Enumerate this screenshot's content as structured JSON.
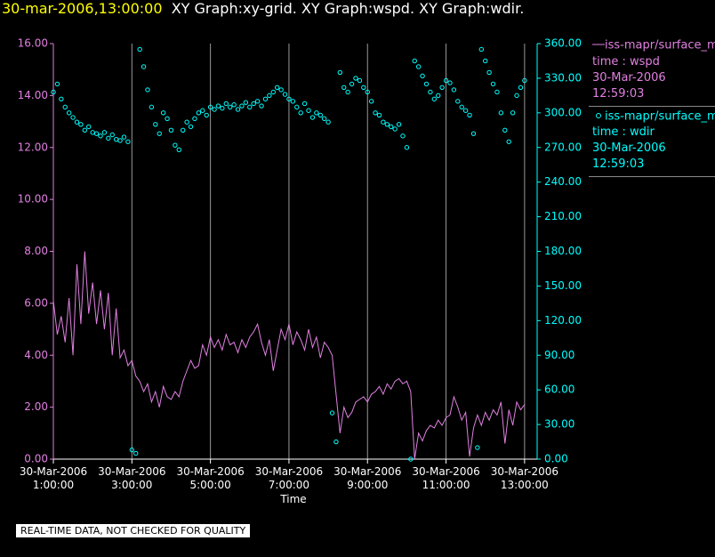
{
  "chart_data": {
    "type": "line",
    "timestamp": "30-mar-2006,13:00:00",
    "title": "XY Graph:xy-grid.  XY Graph:wspd.  XY Graph:wdir.",
    "x_label": "Time",
    "footer": "REAL-TIME DATA, NOT CHECKED FOR QUALITY",
    "xlim": [
      1,
      13.32
    ],
    "xticks": [
      {
        "value": 1,
        "label": "30-Mar-2006 1:00:00"
      },
      {
        "value": 3,
        "label": "30-Mar-2006 3:00:00"
      },
      {
        "value": 5,
        "label": "30-Mar-2006 5:00:00"
      },
      {
        "value": 7,
        "label": "30-Mar-2006 7:00:00"
      },
      {
        "value": 9,
        "label": "30-Mar-2006 9:00:00"
      },
      {
        "value": 11,
        "label": "30-Mar-2006 11:00:00"
      },
      {
        "value": 13,
        "label": "30-Mar-2006 13:00:00"
      }
    ],
    "ylim": [
      0,
      16
    ],
    "yticks": [
      {
        "value": 0,
        "label": "0.00"
      },
      {
        "value": 2,
        "label": "2.00"
      },
      {
        "value": 4,
        "label": "4.00"
      },
      {
        "value": 6,
        "label": "6.00"
      },
      {
        "value": 8,
        "label": "8.00"
      },
      {
        "value": 10,
        "label": "10.00"
      },
      {
        "value": 12,
        "label": "12.00"
      },
      {
        "value": 14,
        "label": "14.00"
      },
      {
        "value": 16,
        "label": "16.00"
      }
    ],
    "y2lim": [
      0,
      360
    ],
    "y2ticks": [
      {
        "value": 0,
        "label": "0.00"
      },
      {
        "value": 30,
        "label": "30.00"
      },
      {
        "value": 60,
        "label": "60.00"
      },
      {
        "value": 90,
        "label": "90.00"
      },
      {
        "value": 120,
        "label": "120.00"
      },
      {
        "value": 150,
        "label": "150.00"
      },
      {
        "value": 180,
        "label": "180.00"
      },
      {
        "value": 210,
        "label": "210.00"
      },
      {
        "value": 240,
        "label": "240.00"
      },
      {
        "value": 270,
        "label": "270.00"
      },
      {
        "value": 300,
        "label": "300.00"
      },
      {
        "value": 330,
        "label": "330.00"
      },
      {
        "value": 360,
        "label": "360.00"
      }
    ],
    "grid": true,
    "series": [
      {
        "name": "iss-mapr/surface_m",
        "color": "#e080e0",
        "type": "line",
        "legend_lines": [
          "time : wspd",
          "30-Mar-2006",
          "12:59:03"
        ],
        "x": [
          1.0,
          1.1,
          1.2,
          1.3,
          1.4,
          1.5,
          1.6,
          1.7,
          1.8,
          1.9,
          2.0,
          2.1,
          2.2,
          2.3,
          2.4,
          2.5,
          2.6,
          2.7,
          2.8,
          2.9,
          3.0,
          3.1,
          3.2,
          3.3,
          3.4,
          3.5,
          3.6,
          3.7,
          3.8,
          3.9,
          4.0,
          4.1,
          4.2,
          4.3,
          4.4,
          4.5,
          4.6,
          4.7,
          4.8,
          4.9,
          5.0,
          5.1,
          5.2,
          5.3,
          5.4,
          5.5,
          5.6,
          5.7,
          5.8,
          5.9,
          6.0,
          6.1,
          6.2,
          6.3,
          6.4,
          6.5,
          6.6,
          6.7,
          6.8,
          6.9,
          7.0,
          7.1,
          7.2,
          7.3,
          7.4,
          7.5,
          7.6,
          7.7,
          7.8,
          7.9,
          8.0,
          8.1,
          8.2,
          8.3,
          8.4,
          8.5,
          8.6,
          8.7,
          8.8,
          8.9,
          9.0,
          9.1,
          9.2,
          9.3,
          9.4,
          9.5,
          9.6,
          9.7,
          9.8,
          9.9,
          10.0,
          10.1,
          10.2,
          10.3,
          10.4,
          10.5,
          10.6,
          10.7,
          10.8,
          10.9,
          11.0,
          11.1,
          11.2,
          11.3,
          11.4,
          11.5,
          11.6,
          11.7,
          11.8,
          11.9,
          12.0,
          12.1,
          12.2,
          12.3,
          12.4,
          12.5,
          12.6,
          12.7,
          12.8,
          12.9,
          13.0
        ],
        "values": [
          6.1,
          4.8,
          5.5,
          4.5,
          6.2,
          4.0,
          7.5,
          5.2,
          8.0,
          5.6,
          6.8,
          5.2,
          6.5,
          5.0,
          6.4,
          4.0,
          5.8,
          3.9,
          4.2,
          3.6,
          3.8,
          3.2,
          3.0,
          2.6,
          2.9,
          2.2,
          2.6,
          2.0,
          2.8,
          2.4,
          2.3,
          2.6,
          2.4,
          3.0,
          3.4,
          3.8,
          3.5,
          3.6,
          4.4,
          4.0,
          4.7,
          4.3,
          4.6,
          4.2,
          4.8,
          4.4,
          4.5,
          4.1,
          4.6,
          4.3,
          4.7,
          4.9,
          5.2,
          4.5,
          4.0,
          4.6,
          3.4,
          4.2,
          5.0,
          4.6,
          5.2,
          4.4,
          4.9,
          4.6,
          4.2,
          5.0,
          4.3,
          4.7,
          3.9,
          4.5,
          4.3,
          4.0,
          2.5,
          1.0,
          2.0,
          1.6,
          1.8,
          2.2,
          2.3,
          2.4,
          2.2,
          2.5,
          2.6,
          2.8,
          2.5,
          2.9,
          2.7,
          3.0,
          3.1,
          2.9,
          3.0,
          2.6,
          0.0,
          1.0,
          0.7,
          1.1,
          1.3,
          1.2,
          1.5,
          1.3,
          1.6,
          1.7,
          2.4,
          2.0,
          1.5,
          1.8,
          0.1,
          1.2,
          1.7,
          1.3,
          1.8,
          1.5,
          1.9,
          1.7,
          2.2,
          0.6,
          1.9,
          1.3,
          2.2,
          1.9,
          2.1
        ]
      },
      {
        "name": "iss-mapr/surface_m",
        "color": "#00ffff",
        "type": "scatter",
        "axis": "y2",
        "legend_lines": [
          "time : wdir",
          "30-Mar-2006",
          "12:59:03"
        ],
        "x": [
          1.0,
          1.1,
          1.2,
          1.3,
          1.4,
          1.5,
          1.6,
          1.7,
          1.8,
          1.9,
          2.0,
          2.1,
          2.2,
          2.3,
          2.4,
          2.5,
          2.6,
          2.7,
          2.8,
          2.9,
          3.0,
          3.1,
          3.2,
          3.3,
          3.4,
          3.5,
          3.6,
          3.7,
          3.8,
          3.9,
          4.0,
          4.1,
          4.2,
          4.3,
          4.4,
          4.5,
          4.6,
          4.7,
          4.8,
          4.9,
          5.0,
          5.1,
          5.2,
          5.3,
          5.4,
          5.5,
          5.6,
          5.7,
          5.8,
          5.9,
          6.0,
          6.1,
          6.2,
          6.3,
          6.4,
          6.5,
          6.6,
          6.7,
          6.8,
          6.9,
          7.0,
          7.1,
          7.2,
          7.3,
          7.4,
          7.5,
          7.6,
          7.7,
          7.8,
          7.9,
          8.0,
          8.1,
          8.2,
          8.3,
          8.4,
          8.5,
          8.6,
          8.7,
          8.8,
          8.9,
          9.0,
          9.1,
          9.2,
          9.3,
          9.4,
          9.5,
          9.6,
          9.7,
          9.8,
          9.9,
          10.0,
          10.1,
          10.2,
          10.3,
          10.4,
          10.5,
          10.6,
          10.7,
          10.8,
          10.9,
          11.0,
          11.1,
          11.2,
          11.3,
          11.4,
          11.5,
          11.6,
          11.7,
          11.8,
          11.9,
          12.0,
          12.1,
          12.2,
          12.3,
          12.4,
          12.5,
          12.6,
          12.7,
          12.8,
          12.9,
          13.0
        ],
        "values": [
          318,
          325,
          312,
          305,
          300,
          296,
          292,
          290,
          285,
          288,
          283,
          282,
          280,
          283,
          278,
          281,
          277,
          276,
          279,
          275,
          8,
          5,
          355,
          340,
          320,
          305,
          290,
          282,
          300,
          295,
          285,
          272,
          268,
          285,
          292,
          288,
          295,
          300,
          302,
          298,
          305,
          303,
          306,
          304,
          308,
          305,
          307,
          303,
          306,
          309,
          305,
          308,
          310,
          306,
          312,
          315,
          318,
          322,
          320,
          316,
          312,
          310,
          305,
          300,
          308,
          302,
          296,
          300,
          298,
          295,
          292,
          40,
          15,
          335,
          322,
          318,
          325,
          330,
          328,
          322,
          318,
          310,
          300,
          298,
          292,
          290,
          288,
          286,
          290,
          280,
          270,
          0,
          345,
          340,
          332,
          325,
          318,
          312,
          315,
          322,
          328,
          326,
          320,
          310,
          305,
          302,
          298,
          282,
          10,
          355,
          345,
          335,
          325,
          318,
          300,
          285,
          275,
          300,
          315,
          322,
          328
        ]
      }
    ]
  }
}
